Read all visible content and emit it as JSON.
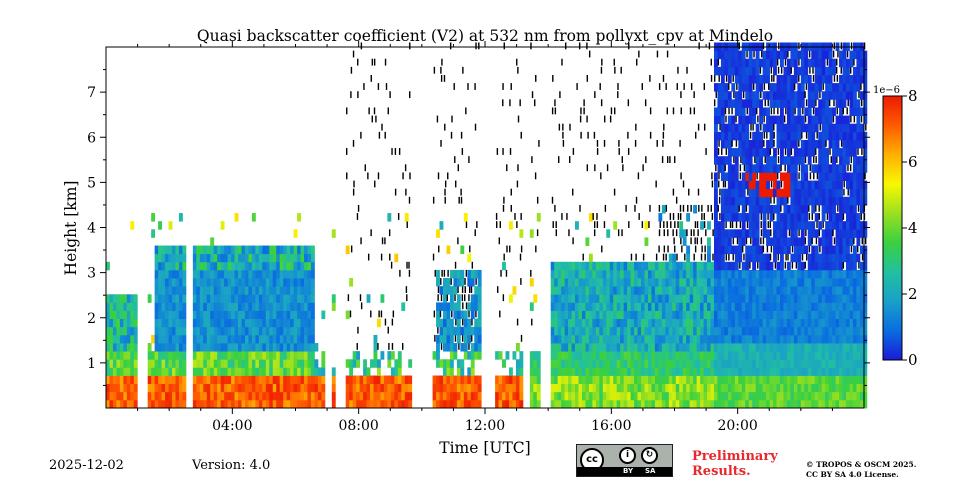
{
  "chart_data": {
    "type": "heatmap",
    "title": "Quasi backscatter coefficient (V2) at 532 nm from pollyxt_cpv at Mindelo",
    "xlabel": "Time [UTC]",
    "ylabel": "Height [km]",
    "xlim_hours": [
      0,
      24
    ],
    "ylim_km": [
      0,
      8
    ],
    "x_ticks": [
      {
        "value": 4,
        "label": "04:00"
      },
      {
        "value": 8,
        "label": "08:00"
      },
      {
        "value": 12,
        "label": "12:00"
      },
      {
        "value": 16,
        "label": "16:00"
      },
      {
        "value": 20,
        "label": "20:00"
      }
    ],
    "y_ticks": [
      {
        "value": 1,
        "label": "1"
      },
      {
        "value": 2,
        "label": "2"
      },
      {
        "value": 3,
        "label": "3"
      },
      {
        "value": 4,
        "label": "4"
      },
      {
        "value": 5,
        "label": "5"
      },
      {
        "value": 6,
        "label": "6"
      },
      {
        "value": 7,
        "label": "7"
      }
    ],
    "colorbar": {
      "min": 0,
      "max": 8,
      "scale_label": "1e−6",
      "ticks": [
        {
          "value": 0,
          "label": "0"
        },
        {
          "value": 2,
          "label": "2"
        },
        {
          "value": 4,
          "label": "4"
        },
        {
          "value": 6,
          "label": "6"
        },
        {
          "value": 8,
          "label": "8"
        }
      ],
      "colors": [
        "#1a1ad8",
        "#0a6de0",
        "#1aa0c8",
        "#22c0a0",
        "#3ad040",
        "#9ae020",
        "#f8f800",
        "#ffb000",
        "#ff5a00",
        "#ee1a00"
      ]
    },
    "data_gaps_hours": [
      [
        0.95,
        1.35
      ],
      [
        2.55,
        2.7
      ],
      [
        6.9,
        7.1
      ],
      [
        7.3,
        7.55
      ],
      [
        9.7,
        10.35
      ],
      [
        11.85,
        12.3
      ],
      [
        13.25,
        13.45
      ],
      [
        13.75,
        14.05
      ]
    ],
    "layers": [
      {
        "name": "surface high-backscatter layer",
        "start_hour": 0,
        "end_hour": 13.2,
        "top_km": 0.8,
        "value": 7.5
      },
      {
        "name": "aerosol layer",
        "start_hour": 1.5,
        "end_hour": 6.6,
        "base_km": 0.8,
        "top_km": 3.6,
        "value": 1.5
      },
      {
        "name": "high clouds",
        "start_hour": 20.2,
        "end_hour": 21.7,
        "base_km": 4.6,
        "top_km": 5.3,
        "value": 8
      }
    ]
  },
  "footer": {
    "date": "2025-12-02",
    "version": "Version: 4.0",
    "cc_by": "BY",
    "cc_sa": "SA",
    "preliminary_line1": "Preliminary",
    "preliminary_line2": "Results.",
    "license_line1": "© TROPOS & OSCM 2025.",
    "license_line2": "CC BY SA 4.0 License."
  }
}
